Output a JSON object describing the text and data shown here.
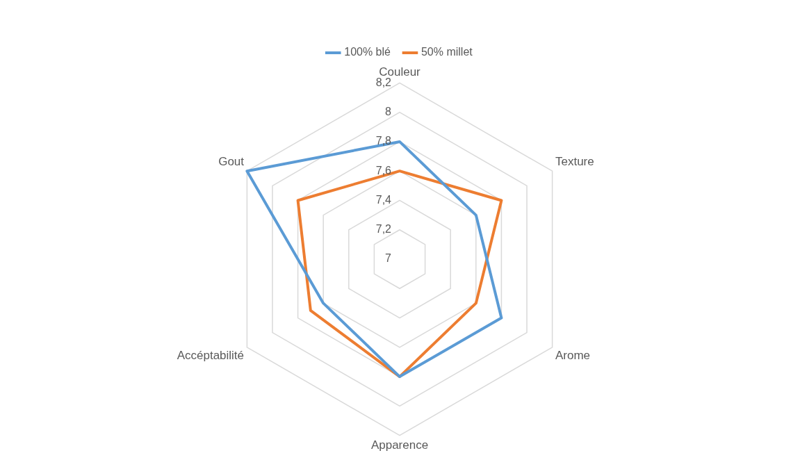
{
  "chart_data": {
    "type": "radar",
    "categories": [
      "Couleur",
      "Texture",
      "Arome",
      "Apparence",
      "Accéptabilité",
      "Gout"
    ],
    "series": [
      {
        "name": "100% blé",
        "color": "#5b9bd5",
        "values": [
          7.8,
          7.6,
          7.8,
          7.8,
          7.6,
          8.2
        ]
      },
      {
        "name": "50% millet",
        "color": "#ed7d31",
        "values": [
          7.6,
          7.8,
          7.6,
          7.8,
          7.7,
          7.8
        ]
      }
    ],
    "ylim": [
      7,
      8.2
    ],
    "yticks": [
      7,
      {
        "value": 7.2,
        "label": "7,2"
      },
      {
        "value": 7.4,
        "label": "7,4"
      },
      {
        "value": 7.6,
        "label": "7,6"
      },
      {
        "value": 7.8,
        "label": "7,8"
      },
      8,
      {
        "value": 8.2,
        "label": "8,2"
      }
    ],
    "grid": true,
    "legend": "top",
    "marker": "none"
  }
}
